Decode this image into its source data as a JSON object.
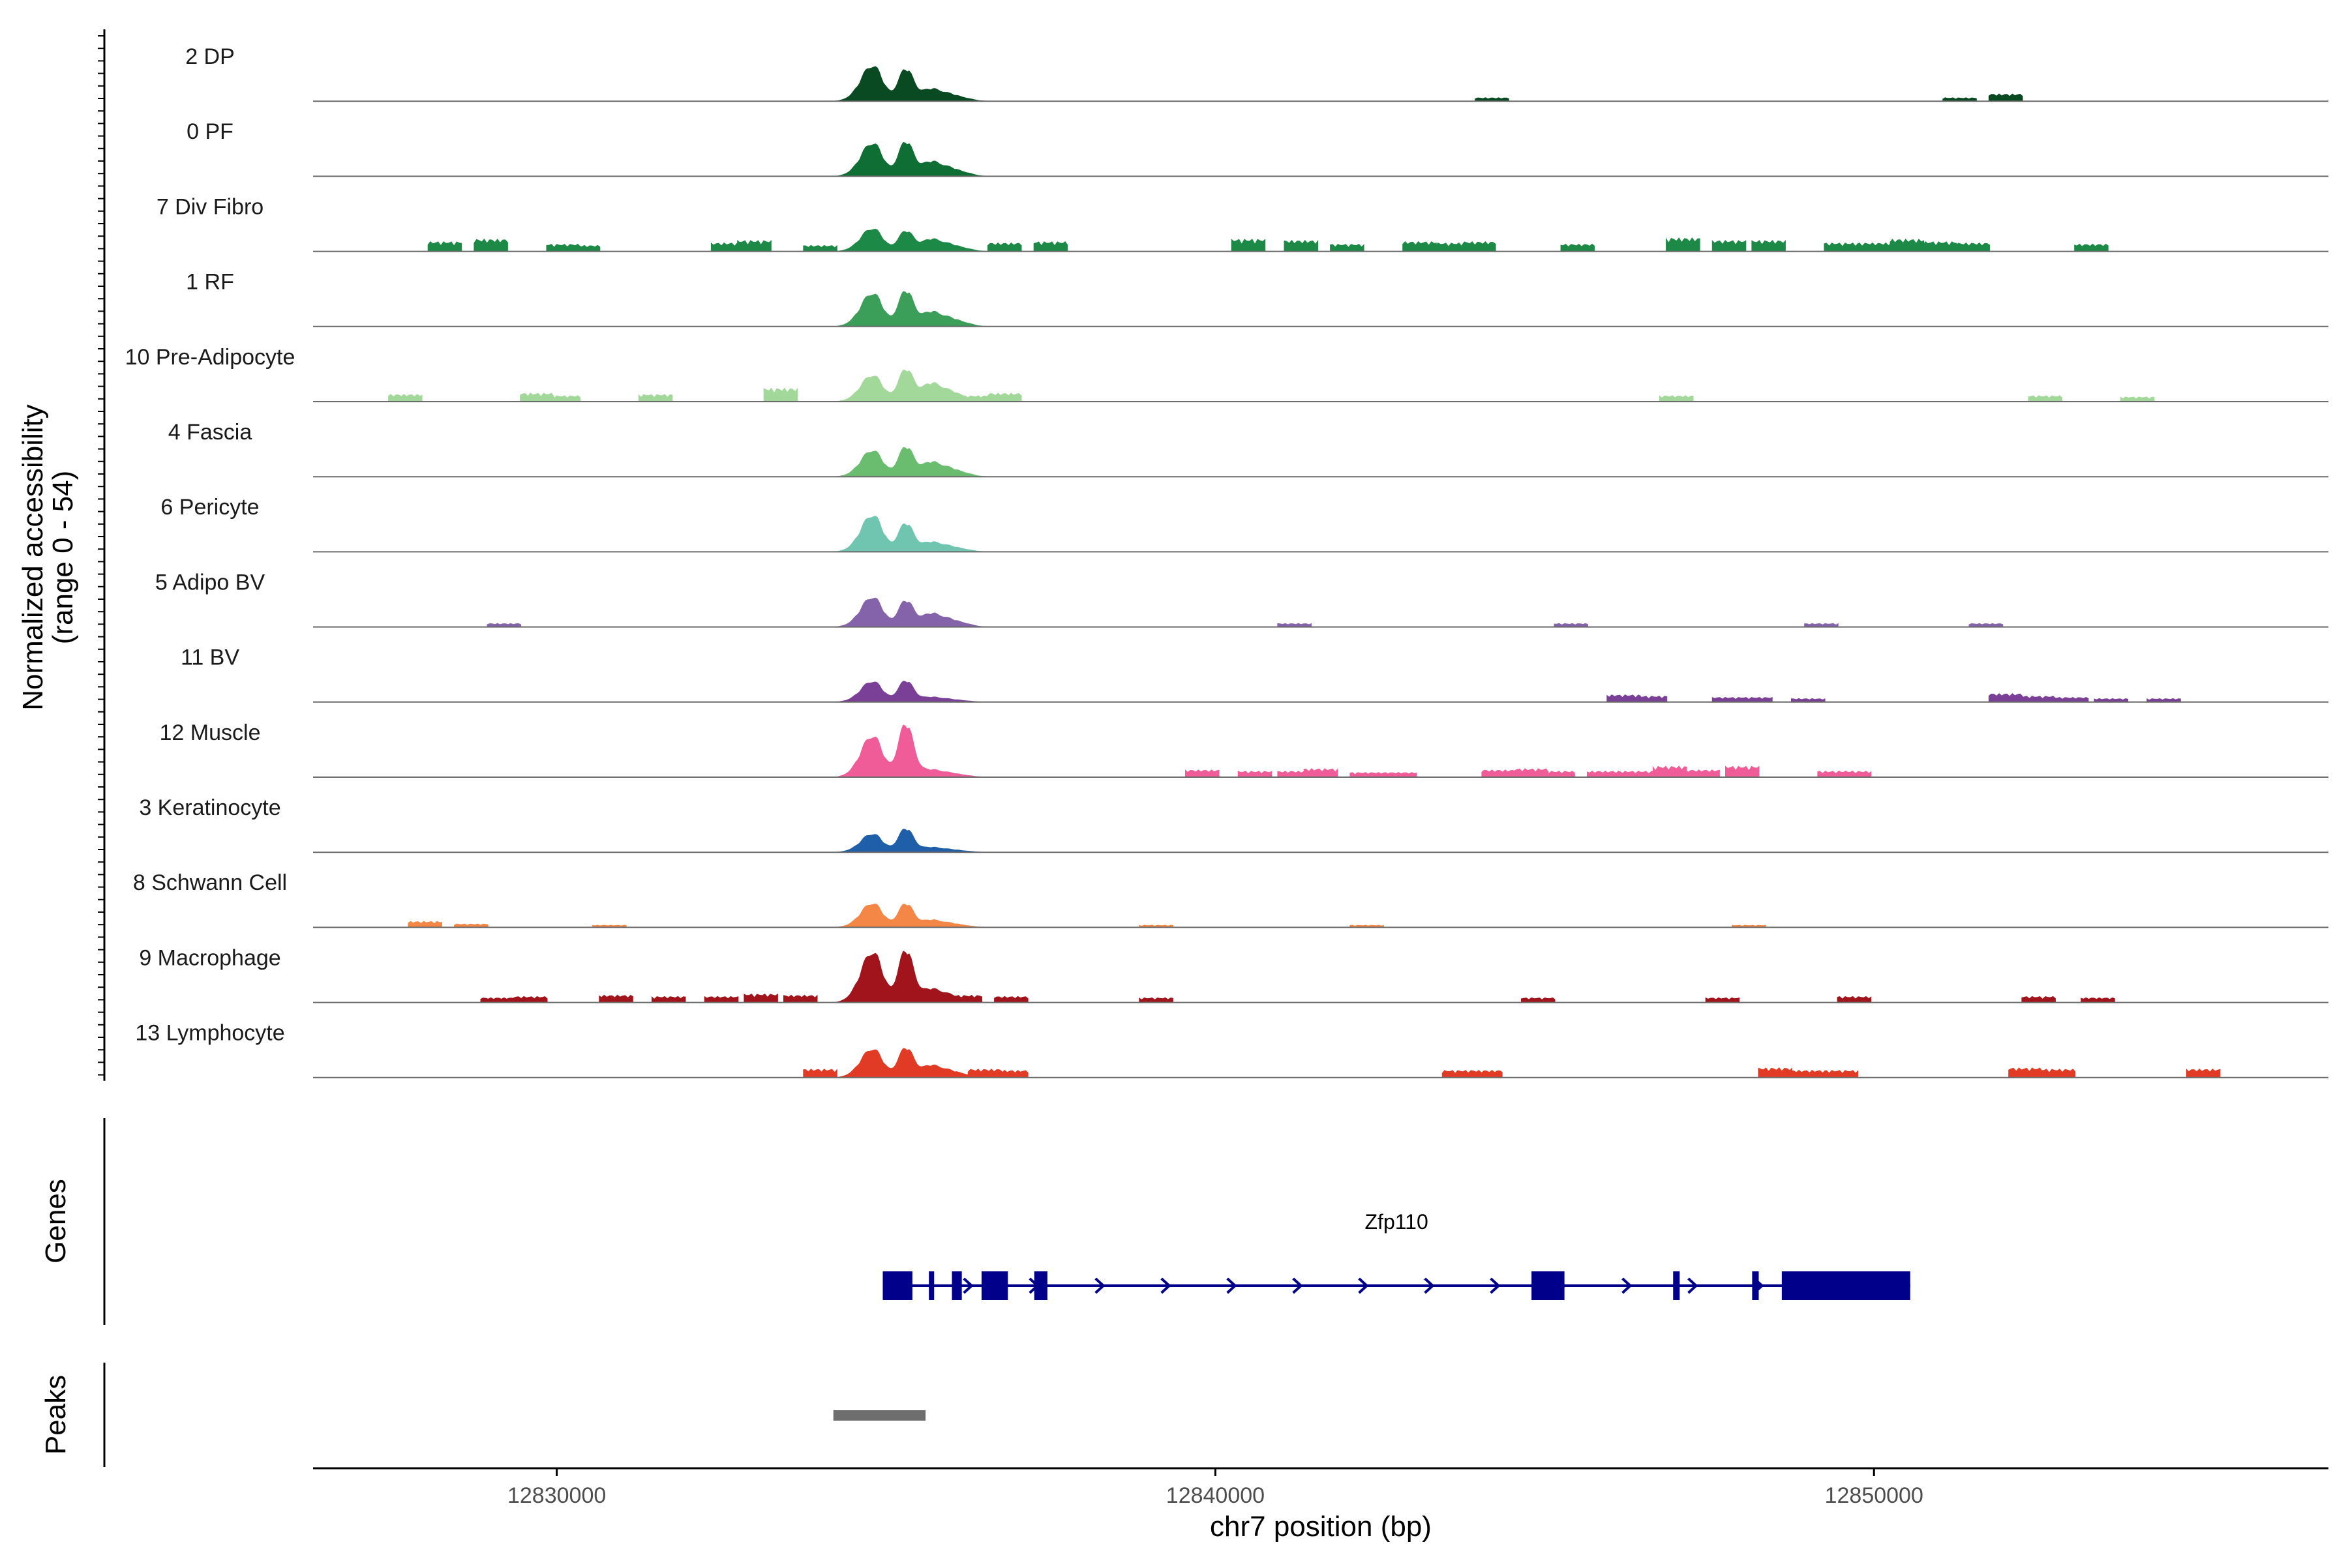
{
  "chart_data": {
    "type": "area",
    "title": "",
    "ylabel": "Normalized accessibility",
    "ylabel_range": "(range 0 - 54)",
    "ylim": [
      0,
      54
    ],
    "xlabel": "chr7 position (bp)",
    "xlim": [
      12826300,
      12856900
    ],
    "x_ticks": [
      12830000,
      12840000,
      12850000
    ],
    "x_tick_labels": [
      "12830000",
      "12840000",
      "12850000"
    ],
    "peak_centers": [
      12834800,
      12835300,
      12835700
    ],
    "tracks": [
      {
        "label": "2 DP",
        "color": "#0a4a22",
        "peaks": [
          31,
          27,
          10
        ],
        "islands": [
          [
            12852000,
            6
          ],
          [
            12844200,
            3
          ],
          [
            12851300,
            3
          ]
        ]
      },
      {
        "label": "0 PF",
        "color": "#0e6e33",
        "peaks": [
          29,
          29,
          12
        ],
        "islands": []
      },
      {
        "label": "7 Div Fibro",
        "color": "#1c8a46",
        "peaks": [
          20,
          17,
          10
        ],
        "islands": [
          [
            12828300,
            8
          ],
          [
            12829000,
            10
          ],
          [
            12830100,
            6
          ],
          [
            12830400,
            5
          ],
          [
            12832600,
            7
          ],
          [
            12833000,
            9
          ],
          [
            12834000,
            5
          ],
          [
            12836800,
            7
          ],
          [
            12837500,
            8
          ],
          [
            12840500,
            10
          ],
          [
            12841300,
            9
          ],
          [
            12842000,
            6
          ],
          [
            12843100,
            8
          ],
          [
            12843600,
            7
          ],
          [
            12844000,
            8
          ],
          [
            12845500,
            6
          ],
          [
            12847100,
            11
          ],
          [
            12847800,
            9
          ],
          [
            12848400,
            9
          ],
          [
            12849500,
            7
          ],
          [
            12850000,
            7
          ],
          [
            12850500,
            10
          ],
          [
            12851000,
            8
          ],
          [
            12851500,
            7
          ],
          [
            12853300,
            6
          ]
        ]
      },
      {
        "label": "1 RF",
        "color": "#3b9e59",
        "peaks": [
          29,
          30,
          12
        ],
        "islands": []
      },
      {
        "label": "10 Pre-Adipocyte",
        "color": "#a2d899",
        "peaks": [
          23,
          27,
          15
        ],
        "islands": [
          [
            12827700,
            6
          ],
          [
            12829700,
            7
          ],
          [
            12830100,
            5
          ],
          [
            12831500,
            6
          ],
          [
            12833400,
            11
          ],
          [
            12836300,
            5
          ],
          [
            12836800,
            7
          ],
          [
            12847000,
            5
          ],
          [
            12852600,
            5
          ],
          [
            12854000,
            4
          ]
        ]
      },
      {
        "label": "4 Fascia",
        "color": "#6abd6e",
        "peaks": [
          23,
          25,
          12
        ],
        "islands": []
      },
      {
        "label": "6 Pericyte",
        "color": "#6fc5b0",
        "peaks": [
          32,
          24,
          8
        ],
        "islands": []
      },
      {
        "label": "5 Adipo BV",
        "color": "#8563aa",
        "peaks": [
          26,
          22,
          11
        ],
        "islands": [
          [
            12829200,
            3
          ],
          [
            12841200,
            3
          ],
          [
            12845400,
            3
          ],
          [
            12849200,
            3
          ],
          [
            12851700,
            3
          ]
        ]
      },
      {
        "label": "11 BV",
        "color": "#7a3f97",
        "peaks": [
          18,
          18,
          4
        ],
        "islands": [
          [
            12846200,
            6
          ],
          [
            12846600,
            5
          ],
          [
            12847800,
            4
          ],
          [
            12848200,
            4
          ],
          [
            12849000,
            3
          ],
          [
            12852000,
            7
          ],
          [
            12852500,
            5
          ],
          [
            12853000,
            4
          ],
          [
            12853600,
            3
          ],
          [
            12854400,
            3
          ]
        ]
      },
      {
        "label": "12 Muscle",
        "color": "#ef5c97",
        "peaks": [
          36,
          45,
          6
        ],
        "islands": [
          [
            12839800,
            6
          ],
          [
            12840600,
            5
          ],
          [
            12841200,
            5
          ],
          [
            12841600,
            7
          ],
          [
            12842300,
            4
          ],
          [
            12842800,
            4
          ],
          [
            12844300,
            6
          ],
          [
            12844800,
            7
          ],
          [
            12845200,
            5
          ],
          [
            12845900,
            5
          ],
          [
            12846400,
            5
          ],
          [
            12846900,
            9
          ],
          [
            12847400,
            6
          ],
          [
            12848000,
            9
          ],
          [
            12849400,
            5
          ],
          [
            12849700,
            5
          ]
        ]
      },
      {
        "label": "3 Keratinocyte",
        "color": "#1f5ea8",
        "peaks": [
          16,
          20,
          4
        ],
        "islands": []
      },
      {
        "label": "8 Schwann Cell",
        "color": "#f48746",
        "peaks": [
          21,
          20,
          6
        ],
        "islands": [
          [
            12828000,
            5
          ],
          [
            12828700,
            3
          ],
          [
            12830800,
            2
          ],
          [
            12839100,
            2
          ],
          [
            12842300,
            2
          ],
          [
            12848100,
            2
          ]
        ]
      },
      {
        "label": "9 Macrophage",
        "color": "#a2141c",
        "peaks": [
          44,
          44,
          11
        ],
        "islands": [
          [
            12829100,
            4
          ],
          [
            12829600,
            5
          ],
          [
            12830900,
            6
          ],
          [
            12831700,
            5
          ],
          [
            12832500,
            5
          ],
          [
            12833100,
            7
          ],
          [
            12833700,
            6
          ],
          [
            12836200,
            6
          ],
          [
            12836900,
            5
          ],
          [
            12839100,
            4
          ],
          [
            12844900,
            4
          ],
          [
            12847700,
            4
          ],
          [
            12849700,
            5
          ],
          [
            12852500,
            5
          ],
          [
            12853400,
            4
          ]
        ]
      },
      {
        "label": "13 Lymphocyte",
        "color": "#e23b25",
        "peaks": [
          25,
          25,
          10
        ],
        "islands": [
          [
            12834000,
            7
          ],
          [
            12836500,
            7
          ],
          [
            12836900,
            6
          ],
          [
            12843700,
            6
          ],
          [
            12844100,
            6
          ],
          [
            12848500,
            8
          ],
          [
            12849000,
            6
          ],
          [
            12849500,
            6
          ],
          [
            12852300,
            8
          ],
          [
            12852800,
            7
          ],
          [
            12855000,
            7
          ]
        ]
      }
    ],
    "genes": {
      "label": "Genes",
      "name": "Zfp110",
      "color": "#00008b",
      "start": 12834950,
      "end": 12850550,
      "strand": "+",
      "exons": [
        [
          12834950,
          12835400
        ],
        [
          12835650,
          12835730
        ],
        [
          12836000,
          12836150
        ],
        [
          12836450,
          12836850
        ],
        [
          12837250,
          12837450
        ],
        [
          12844800,
          12845300
        ],
        [
          12846950,
          12847050
        ],
        [
          12848150,
          12848250
        ],
        [
          12848600,
          12850550
        ]
      ]
    },
    "peaks_track": {
      "label": "Peaks",
      "color": "#6e6e6e",
      "regions": [
        [
          12834200,
          12835600
        ]
      ]
    }
  }
}
